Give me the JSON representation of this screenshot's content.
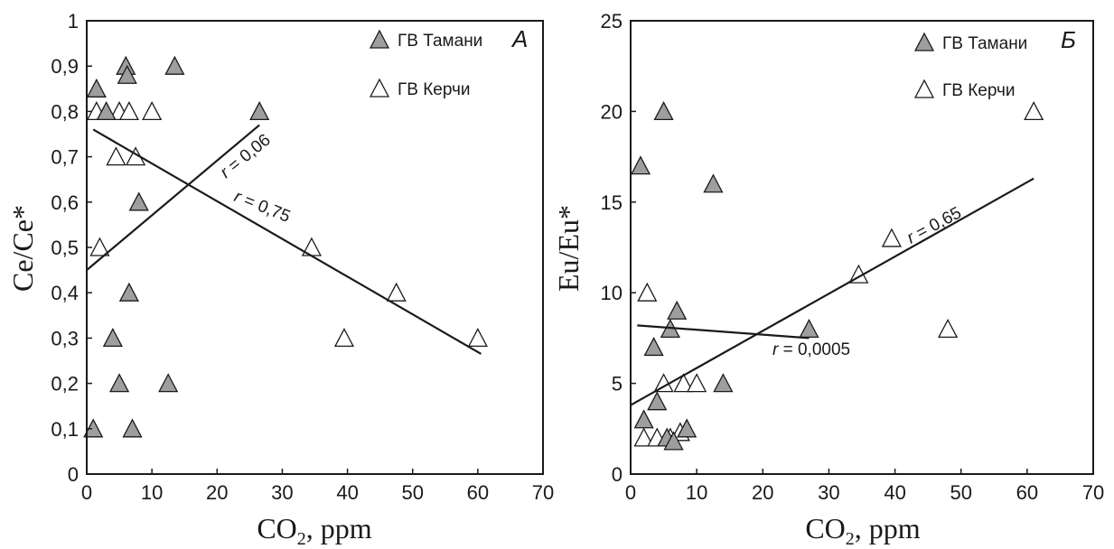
{
  "chart_data": [
    {
      "type": "scatter",
      "panel_label": "А",
      "xlabel": "CO",
      "xlabel_sub": "2",
      "xlabel_suffix": ", ppm",
      "ylabel": "Ce/Ce*",
      "xlim": [
        0,
        70
      ],
      "ylim": [
        0,
        1
      ],
      "xticks": [
        "0",
        "10",
        "20",
        "30",
        "40",
        "50",
        "60",
        "70"
      ],
      "yticks": [
        "0",
        "0,1",
        "0,2",
        "0,3",
        "0,4",
        "0,5",
        "0,6",
        "0,7",
        "0,8",
        "0,9",
        "1"
      ],
      "legend_position": "top-right",
      "series": [
        {
          "name": "ГВ Тамани",
          "marker": "filled-triangle",
          "color": "#9e9e9e",
          "points": [
            [
              1,
              0.1
            ],
            [
              1.5,
              0.85
            ],
            [
              3,
              0.8
            ],
            [
              4,
              0.3
            ],
            [
              5,
              0.2
            ],
            [
              6,
              0.9
            ],
            [
              6.2,
              0.88
            ],
            [
              6.5,
              0.4
            ],
            [
              7,
              0.1
            ],
            [
              8,
              0.6
            ],
            [
              12.5,
              0.2
            ],
            [
              13.5,
              0.9
            ],
            [
              26.5,
              0.8
            ]
          ]
        },
        {
          "name": "ГВ Керчи",
          "marker": "open-triangle",
          "color": "#ffffff",
          "points": [
            [
              1.5,
              0.8
            ],
            [
              2,
              0.5
            ],
            [
              4.5,
              0.7
            ],
            [
              5,
              0.8
            ],
            [
              6.5,
              0.8
            ],
            [
              7.5,
              0.7
            ],
            [
              10,
              0.8
            ],
            [
              34.5,
              0.5
            ],
            [
              47.5,
              0.4
            ],
            [
              39.5,
              0.3
            ],
            [
              60,
              0.3
            ]
          ]
        }
      ],
      "fit_lines": [
        {
          "x": [
            1,
            60.5
          ],
          "y": [
            0.76,
            0.265
          ],
          "label": "r = 0,75",
          "r_symbol": "r",
          "r_value": " = 0,75"
        },
        {
          "x": [
            0,
            26.5
          ],
          "y": [
            0.45,
            0.77
          ],
          "label": "r = 0,06",
          "r_symbol": "r",
          "r_value": " = 0,06"
        }
      ]
    },
    {
      "type": "scatter",
      "panel_label": "Б",
      "xlabel": "CO",
      "xlabel_sub": "2",
      "xlabel_suffix": ", ppm",
      "ylabel": "Eu/Eu*",
      "xlim": [
        0,
        70
      ],
      "ylim": [
        0,
        25
      ],
      "xticks": [
        "0",
        "10",
        "20",
        "30",
        "40",
        "50",
        "60",
        "70"
      ],
      "yticks": [
        "0",
        "5",
        "10",
        "15",
        "20",
        "25"
      ],
      "legend_position": "top-right",
      "series": [
        {
          "name": "ГВ Тамани",
          "marker": "filled-triangle",
          "color": "#9e9e9e",
          "points": [
            [
              1.5,
              17
            ],
            [
              2,
              3
            ],
            [
              3.5,
              7
            ],
            [
              4,
              4
            ],
            [
              5,
              20
            ],
            [
              5.5,
              2
            ],
            [
              6,
              8
            ],
            [
              6.5,
              1.8
            ],
            [
              7,
              9
            ],
            [
              8.5,
              2.5
            ],
            [
              12.5,
              16
            ],
            [
              14,
              5
            ],
            [
              27,
              8
            ]
          ]
        },
        {
          "name": "ГВ Керчи",
          "marker": "open-triangle",
          "color": "#ffffff",
          "points": [
            [
              2,
              2
            ],
            [
              2.5,
              10
            ],
            [
              4,
              2
            ],
            [
              5,
              5
            ],
            [
              6,
              2
            ],
            [
              7.5,
              2.3
            ],
            [
              8,
              5
            ],
            [
              10,
              5
            ],
            [
              34.5,
              11
            ],
            [
              39.5,
              13
            ],
            [
              48,
              8
            ],
            [
              61,
              20
            ]
          ]
        }
      ],
      "fit_lines": [
        {
          "x": [
            0,
            61
          ],
          "y": [
            3.8,
            16.3
          ],
          "label": "r = 0,65",
          "r_symbol": "r",
          "r_value": " = 0,65"
        },
        {
          "x": [
            1,
            27
          ],
          "y": [
            8.2,
            7.5
          ],
          "label": "r = 0,0005",
          "r_symbol": "r",
          "r_value": " = 0,0005"
        }
      ]
    }
  ]
}
